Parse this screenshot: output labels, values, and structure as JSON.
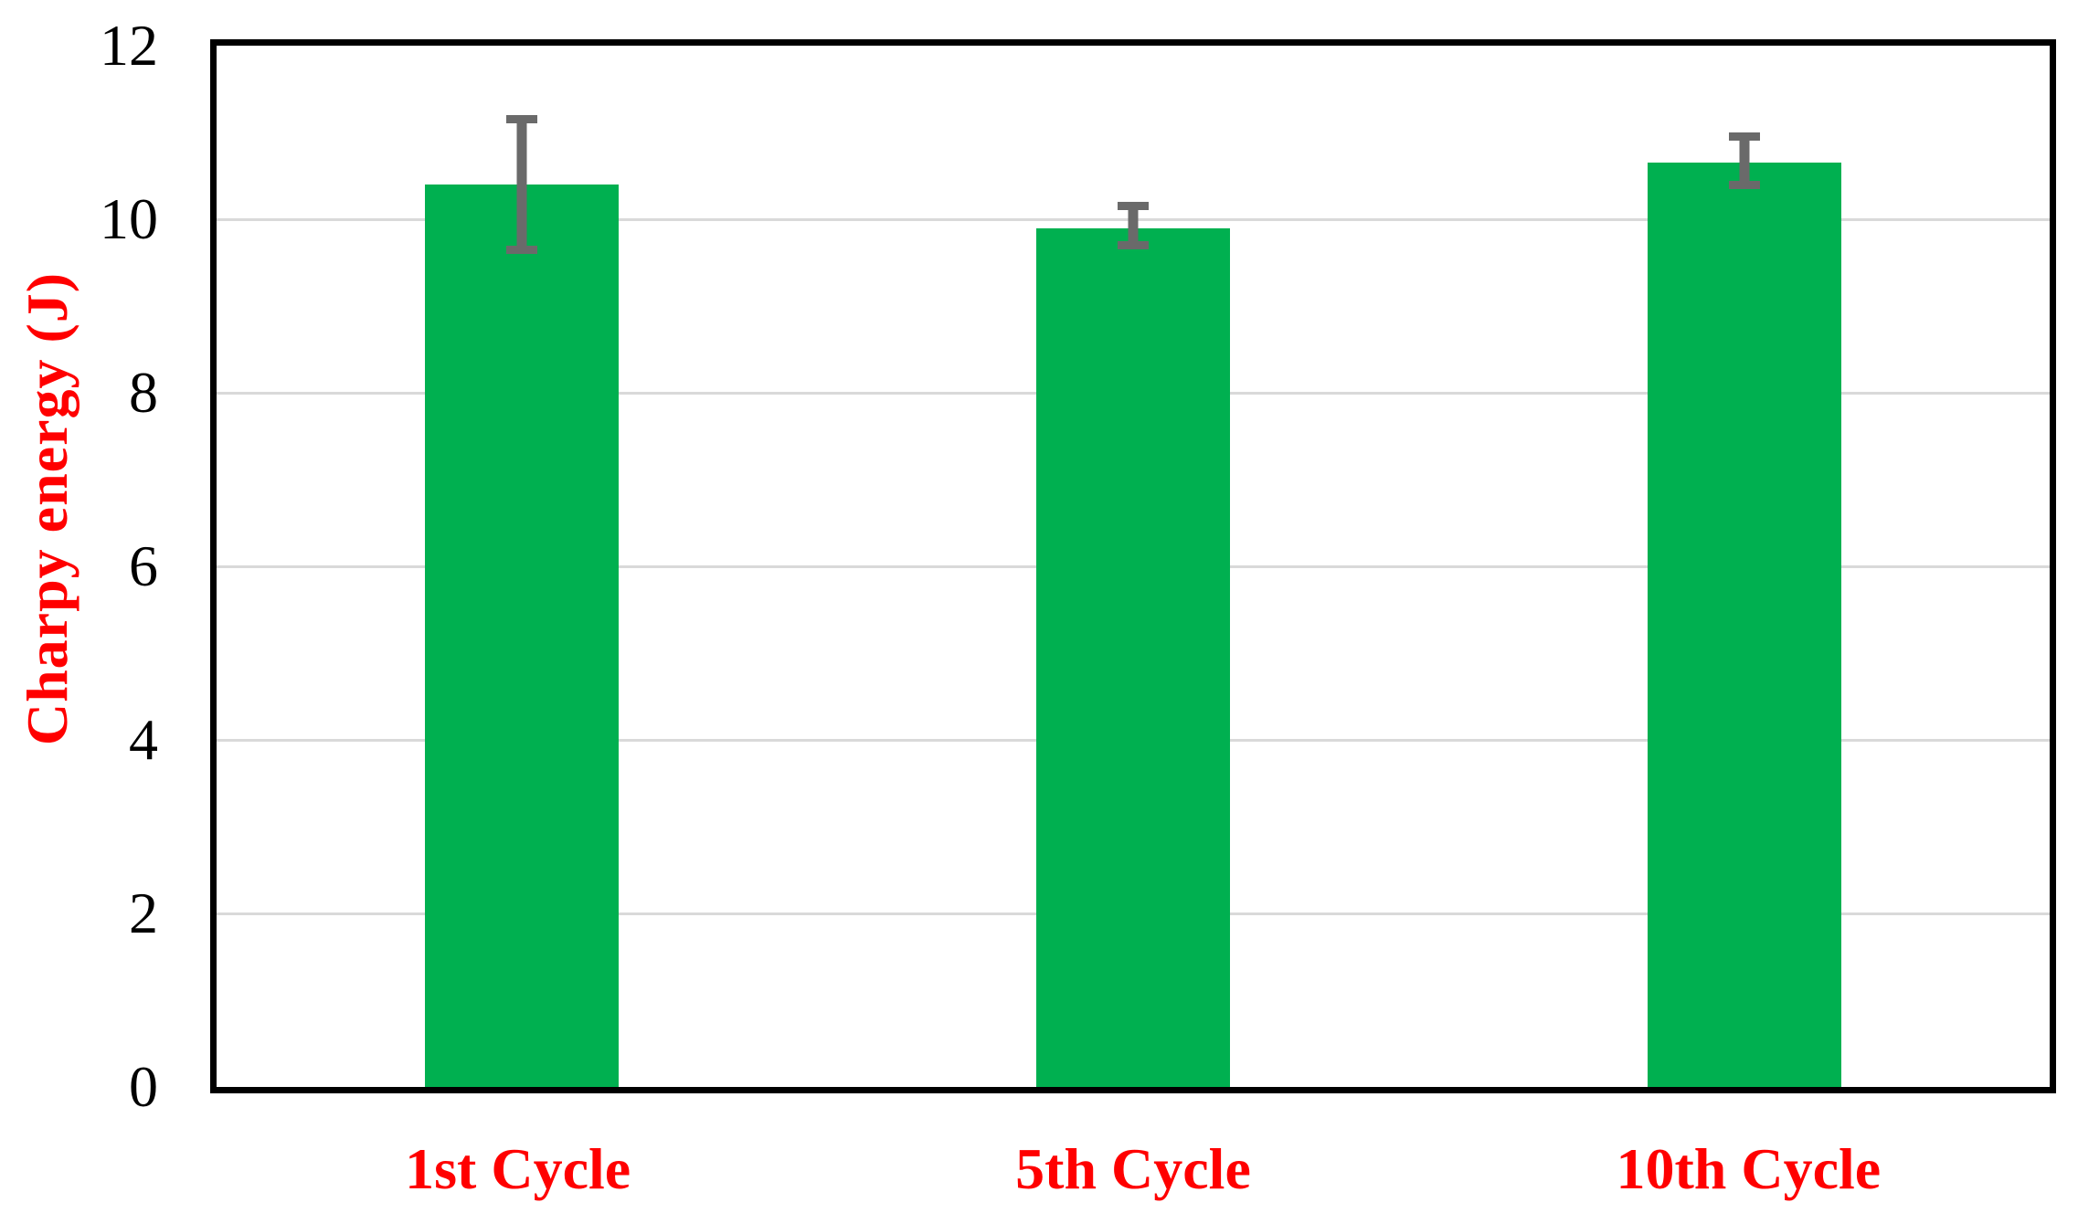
{
  "chart_data": {
    "type": "bar",
    "title": "",
    "xlabel": "",
    "ylabel": "Charpy energy (J)",
    "categories": [
      "1st Cycle",
      "5th Cycle",
      "10th Cycle"
    ],
    "values": [
      10.4,
      9.9,
      10.65
    ],
    "error_high": [
      11.2,
      10.2,
      11.0
    ],
    "error_low": [
      9.6,
      9.65,
      10.35
    ],
    "ylim": [
      0,
      12
    ],
    "yticks": [
      0,
      2,
      4,
      6,
      8,
      10,
      12
    ],
    "grid": "horizontal-light",
    "legend_position": "none",
    "colors": {
      "bar_fill": "#00B050",
      "error_bar": "#6a6a6a",
      "axis_label_red": "#FF0000",
      "tick_text": "#000000",
      "gridline": "#d9d9d9",
      "plot_border": "#000000",
      "background": "#ffffff"
    }
  }
}
